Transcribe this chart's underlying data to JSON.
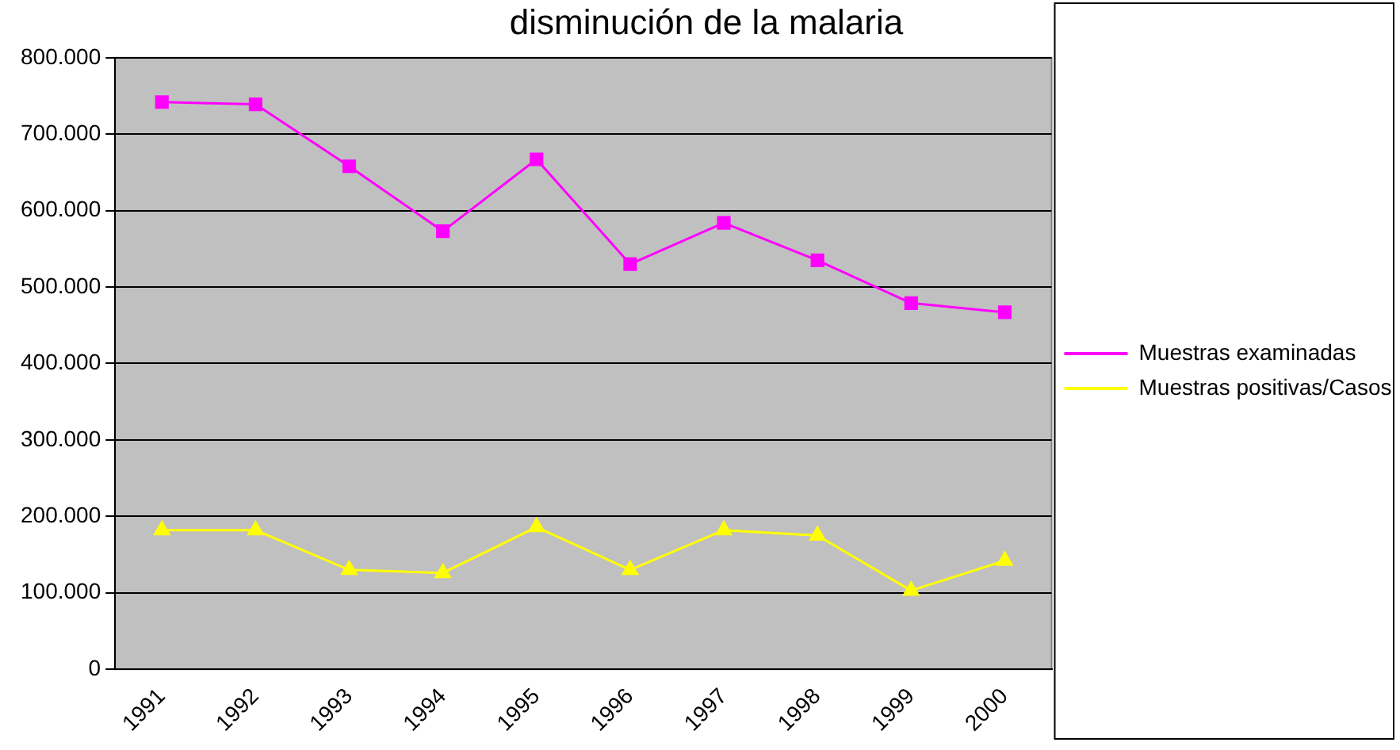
{
  "chart_data": {
    "type": "line",
    "title": "disminución de la malaria",
    "categories": [
      "1991",
      "1992",
      "1993",
      "1994",
      "1995",
      "1996",
      "1997",
      "1998",
      "1999",
      "2000"
    ],
    "series": [
      {
        "name": "Muestras examinadas",
        "color": "#ff00ff",
        "marker": "square",
        "values": [
          742000,
          739000,
          658000,
          573000,
          667000,
          530000,
          584000,
          535000,
          479000,
          467000
        ]
      },
      {
        "name": "Muestras positivas/Casos",
        "color": "#ffff00",
        "marker": "triangle",
        "values": [
          182000,
          182000,
          130000,
          126000,
          186000,
          130000,
          182000,
          175000,
          103000,
          142000
        ]
      }
    ],
    "ylim": [
      0,
      800000
    ],
    "yticks": [
      {
        "value": 0,
        "label": "0"
      },
      {
        "value": 100000,
        "label": "100.000"
      },
      {
        "value": 200000,
        "label": "200.000"
      },
      {
        "value": 300000,
        "label": "300.000"
      },
      {
        "value": 400000,
        "label": "400.000"
      },
      {
        "value": 500000,
        "label": "500.000"
      },
      {
        "value": 600000,
        "label": "600.000"
      },
      {
        "value": 700000,
        "label": "700.000"
      },
      {
        "value": 800000,
        "label": "800.000"
      }
    ],
    "grid": "y",
    "legend": "right",
    "line_style": "solid"
  }
}
